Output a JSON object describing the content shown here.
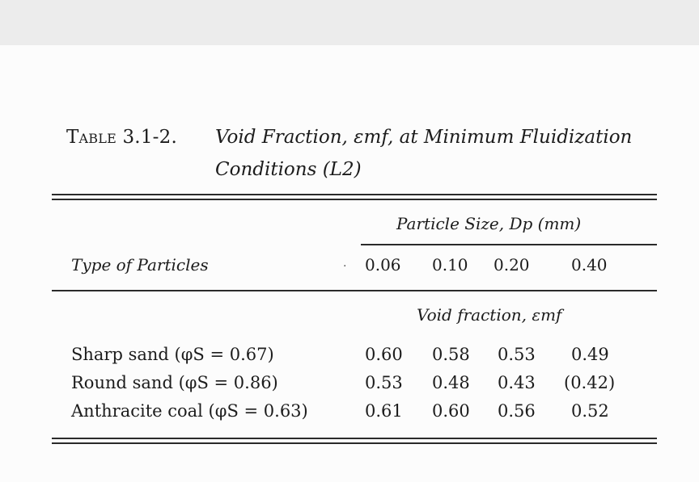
{
  "table": {
    "caption": {
      "label": "Table 3.1-2.",
      "title_line1": "Void Fraction, εmf, at Minimum Fluidization",
      "title_line2": "Conditions (L2)"
    },
    "row_header": "Type of Particles",
    "group_header": "Particle Size, Dp (mm)",
    "sub_header": "Void fraction, εmf",
    "columns": [
      "0.06",
      "0.10",
      "0.20",
      "0.40"
    ],
    "rows": [
      {
        "label": "Sharp sand (φS = 0.67)",
        "values": [
          "0.60",
          "0.58",
          "0.53",
          "0.49"
        ]
      },
      {
        "label": "Round sand (φS = 0.86)",
        "values": [
          "0.53",
          "0.48",
          "0.43",
          "(0.42)"
        ]
      },
      {
        "label": "Anthracite coal (φS = 0.63)",
        "values": [
          "0.61",
          "0.60",
          "0.56",
          "0.52"
        ]
      }
    ]
  }
}
